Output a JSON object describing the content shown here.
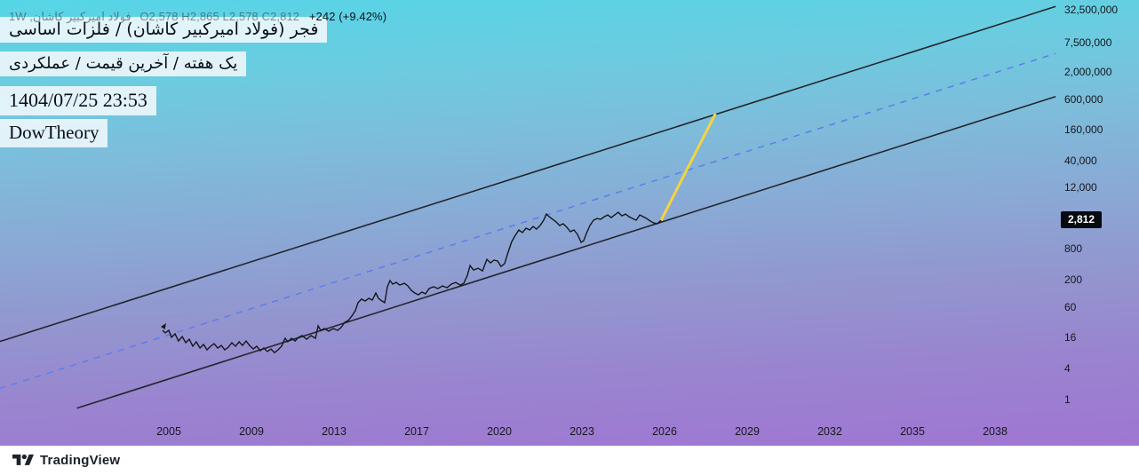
{
  "colors": {
    "bg_gradient": [
      "#55d6e7 0%",
      "#6bcce0 16%",
      "#7fbbda 32%",
      "#8ba7d4 48%",
      "#9395cf 62%",
      "#9985cf 76%",
      "#9e79d2 90%",
      "#a273d4 100%"
    ],
    "channel_line": "#23252c",
    "median_line": "#5f7bf0",
    "projection_line": "#f7d33e",
    "price_line": "#15171c",
    "chip_bg": "rgba(235,246,251,0.92)",
    "price_tag_bg": "#070a0f",
    "price_tag_text": "#ffffff",
    "axis_text": "#14161c",
    "legend_muted": "rgba(52,60,72,0.58)",
    "legend_change": "#0c1118",
    "footer_bg": "#ffffff",
    "brand_color": "#1b202b"
  },
  "header": {
    "legend": {
      "symbol": "فولاد امیرکبیر کاشان, 1W",
      "ohlc": "O2,578  H2,865  L2,578  C2,812",
      "change": "+242 (+9.42%)"
    },
    "title_lines": [
      "فجر (فولاد امیرکبیر کاشان) / فلزات اساسی",
      "یک هفته / آخرین قیمت / عملکردی",
      "1404/07/25 23:53",
      "DowTheory"
    ]
  },
  "y_axis": {
    "ticks": [
      {
        "value": 32500000,
        "label": "32,500,000"
      },
      {
        "value": 7500000,
        "label": "7,500,000"
      },
      {
        "value": 2000000,
        "label": "2,000,000"
      },
      {
        "value": 600000,
        "label": "600,000"
      },
      {
        "value": 160000,
        "label": "160,000"
      },
      {
        "value": 40000,
        "label": "40,000"
      },
      {
        "value": 12000,
        "label": "12,000"
      },
      {
        "value": 800,
        "label": "800"
      },
      {
        "value": 200,
        "label": "200"
      },
      {
        "value": 60,
        "label": "60"
      },
      {
        "value": 16,
        "label": "16"
      },
      {
        "value": 4,
        "label": "4"
      },
      {
        "value": 1,
        "label": "1"
      }
    ],
    "price_tag": {
      "value": 2812,
      "label": "2,812"
    }
  },
  "x_axis": {
    "ticks": [
      {
        "year": 2005,
        "label": "2005"
      },
      {
        "year": 2009,
        "label": "2009"
      },
      {
        "year": 2013,
        "label": "2013"
      },
      {
        "year": 2017,
        "label": "2017"
      },
      {
        "year": 2020,
        "label": "2020"
      },
      {
        "year": 2023,
        "label": "2023"
      },
      {
        "year": 2026,
        "label": "2026"
      },
      {
        "year": 2029,
        "label": "2029"
      },
      {
        "year": 2032,
        "label": "2032"
      },
      {
        "year": 2035,
        "label": "2035"
      },
      {
        "year": 2038,
        "label": "2038"
      }
    ]
  },
  "footer": {
    "brand": "TradingView"
  },
  "chart_data": {
    "type": "line",
    "title": "فجر (فولاد امیرکبیر کاشان) / فلزات اساسی",
    "timeframe": "1W",
    "yscale": "log",
    "ylabel": "price",
    "xlabel": "year",
    "ylim_labels": [
      1,
      32500000
    ],
    "grid": false,
    "legend_position": "top-left",
    "last_close": 2812,
    "change": "+242 (+9.42%)",
    "points": [
      [
        2004.7,
        21.5
      ],
      [
        2004.83,
        19.2
      ],
      [
        2005.0,
        21.5
      ],
      [
        2005.13,
        15.7
      ],
      [
        2005.3,
        18.4
      ],
      [
        2005.47,
        13.4
      ],
      [
        2005.65,
        16.3
      ],
      [
        2005.82,
        12.4
      ],
      [
        2005.99,
        14.5
      ],
      [
        2006.16,
        10.6
      ],
      [
        2006.33,
        12.9
      ],
      [
        2006.51,
        9.8
      ],
      [
        2006.68,
        11.5
      ],
      [
        2006.85,
        9.05
      ],
      [
        2007.02,
        10.6
      ],
      [
        2007.19,
        11.9
      ],
      [
        2007.37,
        9.8
      ],
      [
        2007.54,
        11.0
      ],
      [
        2007.71,
        9.05
      ],
      [
        2007.88,
        10.2
      ],
      [
        2008.05,
        12.4
      ],
      [
        2008.23,
        10.6
      ],
      [
        2008.4,
        12.9
      ],
      [
        2008.57,
        11.0
      ],
      [
        2008.74,
        13.4
      ],
      [
        2008.91,
        11.0
      ],
      [
        2009.09,
        9.4
      ],
      [
        2009.26,
        10.6
      ],
      [
        2009.43,
        8.7
      ],
      [
        2009.6,
        9.8
      ],
      [
        2009.77,
        8.4
      ],
      [
        2009.95,
        9.4
      ],
      [
        2010.12,
        8.0
      ],
      [
        2010.29,
        9.05
      ],
      [
        2010.46,
        10.6
      ],
      [
        2010.63,
        15.1
      ],
      [
        2010.76,
        12.9
      ],
      [
        2010.94,
        15.1
      ],
      [
        2011.11,
        13.4
      ],
      [
        2011.28,
        15.7
      ],
      [
        2011.45,
        17.0
      ],
      [
        2011.67,
        14.5
      ],
      [
        2011.88,
        17.0
      ],
      [
        2012.1,
        15.1
      ],
      [
        2012.23,
        26.2
      ],
      [
        2012.35,
        21.5
      ],
      [
        2012.53,
        23.3
      ],
      [
        2012.74,
        20.7
      ],
      [
        2012.96,
        23.3
      ],
      [
        2013.17,
        21.5
      ],
      [
        2013.34,
        24.3
      ],
      [
        2013.52,
        30.7
      ],
      [
        2013.69,
        33.3
      ],
      [
        2013.86,
        40.5
      ],
      [
        2014.03,
        51.5
      ],
      [
        2014.16,
        73.3
      ],
      [
        2014.33,
        85.7
      ],
      [
        2014.51,
        78.9
      ],
      [
        2014.68,
        88.9
      ],
      [
        2014.85,
        82.1
      ],
      [
        2015.02,
        112
      ],
      [
        2015.15,
        88.9
      ],
      [
        2015.32,
        78.9
      ],
      [
        2015.45,
        73.3
      ],
      [
        2015.58,
        148
      ],
      [
        2015.71,
        195
      ],
      [
        2015.84,
        167
      ],
      [
        2016.01,
        180
      ],
      [
        2016.18,
        160
      ],
      [
        2016.4,
        173
      ],
      [
        2016.57,
        154
      ],
      [
        2016.74,
        126
      ],
      [
        2016.91,
        112
      ],
      [
        2017.06,
        104
      ],
      [
        2017.19,
        117
      ],
      [
        2017.32,
        108
      ],
      [
        2017.45,
        137
      ],
      [
        2017.61,
        148
      ],
      [
        2017.77,
        137
      ],
      [
        2017.94,
        154
      ],
      [
        2018.1,
        142
      ],
      [
        2018.26,
        167
      ],
      [
        2018.42,
        180
      ],
      [
        2018.58,
        160
      ],
      [
        2018.71,
        173
      ],
      [
        2018.84,
        245
      ],
      [
        2018.94,
        380
      ],
      [
        2019.06,
        312
      ],
      [
        2019.23,
        338
      ],
      [
        2019.39,
        300
      ],
      [
        2019.55,
        501
      ],
      [
        2019.68,
        428
      ],
      [
        2019.81,
        482
      ],
      [
        2019.94,
        464
      ],
      [
        2020.06,
        365
      ],
      [
        2020.19,
        412
      ],
      [
        2020.32,
        686
      ],
      [
        2020.45,
        1100
      ],
      [
        2020.58,
        1450
      ],
      [
        2020.71,
        1840
      ],
      [
        2020.84,
        1640
      ],
      [
        2020.97,
        1990
      ],
      [
        2021.1,
        1840
      ],
      [
        2021.23,
        2150
      ],
      [
        2021.35,
        1910
      ],
      [
        2021.48,
        2240
      ],
      [
        2021.61,
        2840
      ],
      [
        2021.71,
        3720
      ],
      [
        2021.81,
        3310
      ],
      [
        2021.94,
        2950
      ],
      [
        2022.06,
        2630
      ],
      [
        2022.19,
        2240
      ],
      [
        2022.32,
        2420
      ],
      [
        2022.45,
        2070
      ],
      [
        2022.58,
        1700
      ],
      [
        2022.71,
        1840
      ],
      [
        2022.84,
        1510
      ],
      [
        2022.97,
        1060
      ],
      [
        2023.06,
        1140
      ],
      [
        2023.16,
        1570
      ],
      [
        2023.29,
        2240
      ],
      [
        2023.42,
        2840
      ],
      [
        2023.55,
        3060
      ],
      [
        2023.68,
        2950
      ],
      [
        2023.81,
        3310
      ],
      [
        2023.94,
        3580
      ],
      [
        2024.06,
        3180
      ],
      [
        2024.19,
        3580
      ],
      [
        2024.32,
        4030
      ],
      [
        2024.45,
        3440
      ],
      [
        2024.58,
        3720
      ],
      [
        2024.71,
        3310
      ],
      [
        2024.84,
        3060
      ],
      [
        2024.97,
        2840
      ],
      [
        2025.1,
        3580
      ],
      [
        2025.23,
        3310
      ],
      [
        2025.35,
        3060
      ],
      [
        2025.48,
        2730
      ],
      [
        2025.61,
        2510
      ],
      [
        2025.74,
        2420
      ],
      [
        2025.87,
        2812
      ]
    ],
    "overlays": {
      "lines": [
        {
          "name": "upper-channel-line",
          "color": "#23252c",
          "width": 1.6,
          "dash": null,
          "points": [
            {
              "year": 1996.8,
              "price": 13
            },
            {
              "year": 2040.2,
              "price": 37000000
            }
          ]
        },
        {
          "name": "median-line",
          "color": "#5f7bf0",
          "width": 1.5,
          "dash": "7 7",
          "points": [
            {
              "year": 1996.8,
              "price": 1.62
            },
            {
              "year": 2040.2,
              "price": 4600000
            }
          ]
        },
        {
          "name": "lower-channel-line",
          "color": "#23252c",
          "width": 1.6,
          "dash": null,
          "points": [
            {
              "year": 2000.55,
              "price": 0.68
            },
            {
              "year": 2040.2,
              "price": 680000
            }
          ]
        },
        {
          "name": "projection-line",
          "color": "#f7d33e",
          "width": 3,
          "dash": null,
          "points": [
            {
              "year": 2025.87,
              "price": 2812
            },
            {
              "year": 2027.85,
              "price": 320000
            }
          ]
        }
      ]
    }
  }
}
